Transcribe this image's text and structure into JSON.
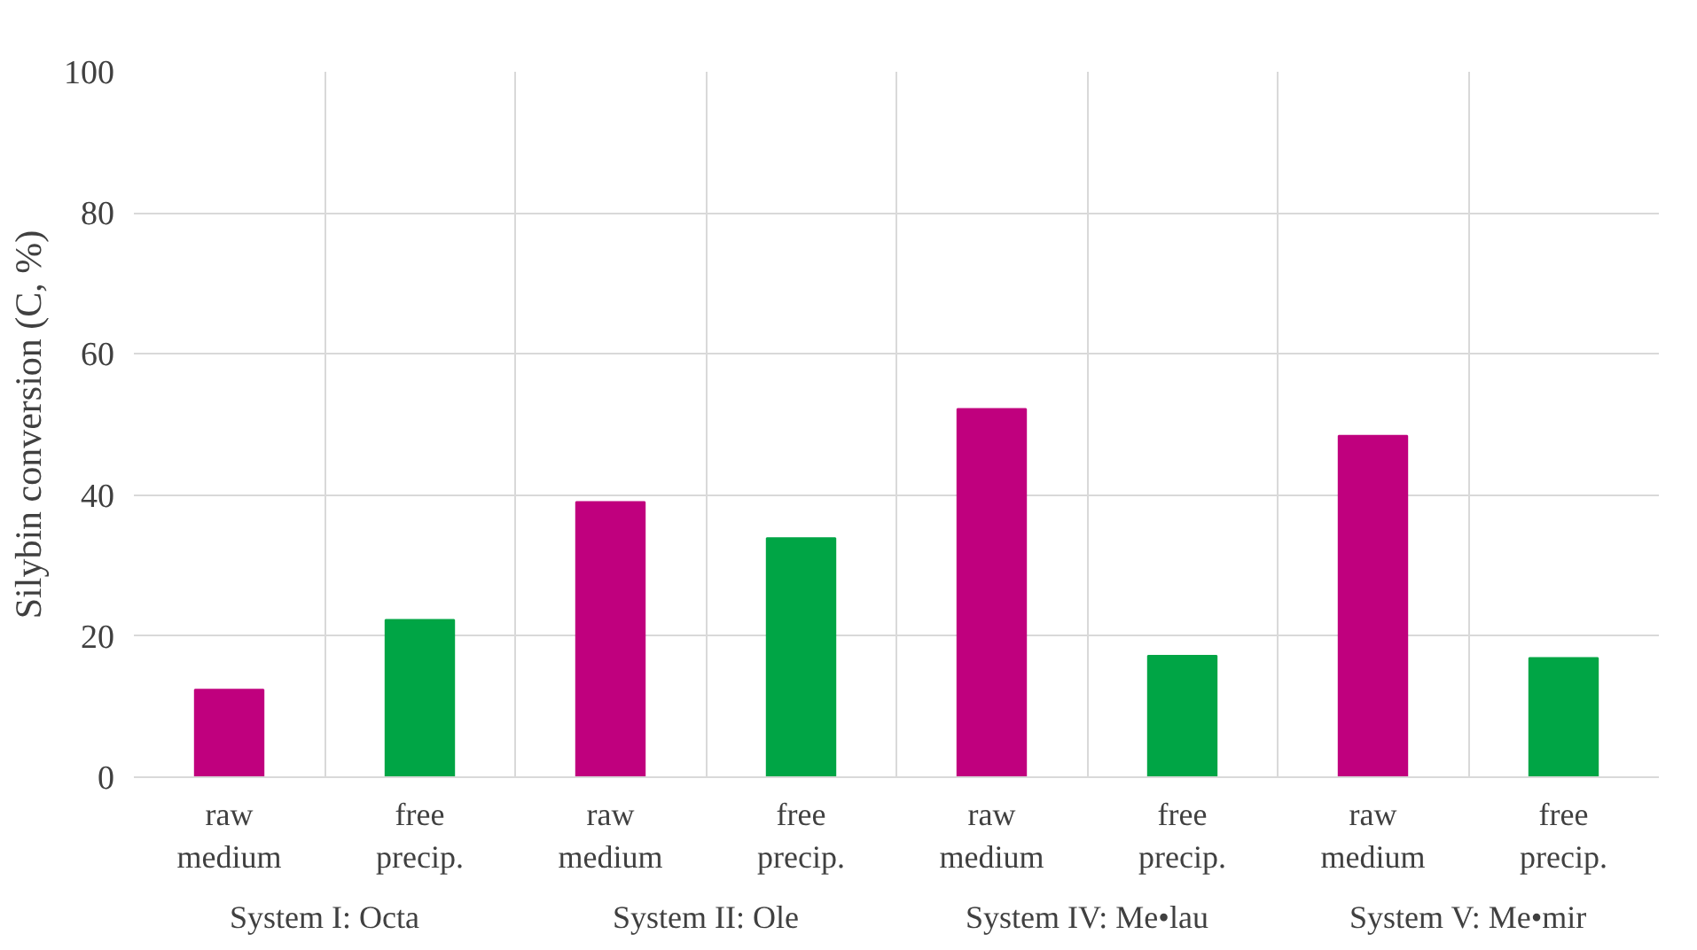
{
  "chart_data": {
    "type": "bar",
    "ylabel": "Silybin conversion (C, %)",
    "categories": [
      "raw medium",
      "free precip.",
      "raw medium",
      "free precip.",
      "raw medium",
      "free precip.",
      "raw medium",
      "free precip."
    ],
    "values": [
      12.4,
      22.3,
      39.0,
      33.9,
      52.2,
      17.2,
      48.4,
      16.9
    ],
    "colors": [
      "#c0007e",
      "#00a545",
      "#c0007e",
      "#00a545",
      "#c0007e",
      "#00a545",
      "#c0007e",
      "#00a545"
    ],
    "annotations": [
      "System I: Octa",
      "System II: Ole",
      "System IV: Me•lau",
      "System V: Me•mir"
    ],
    "ylim": [
      0,
      100
    ],
    "yticks": [
      0,
      20,
      40,
      60,
      80,
      100
    ],
    "grid": true
  }
}
